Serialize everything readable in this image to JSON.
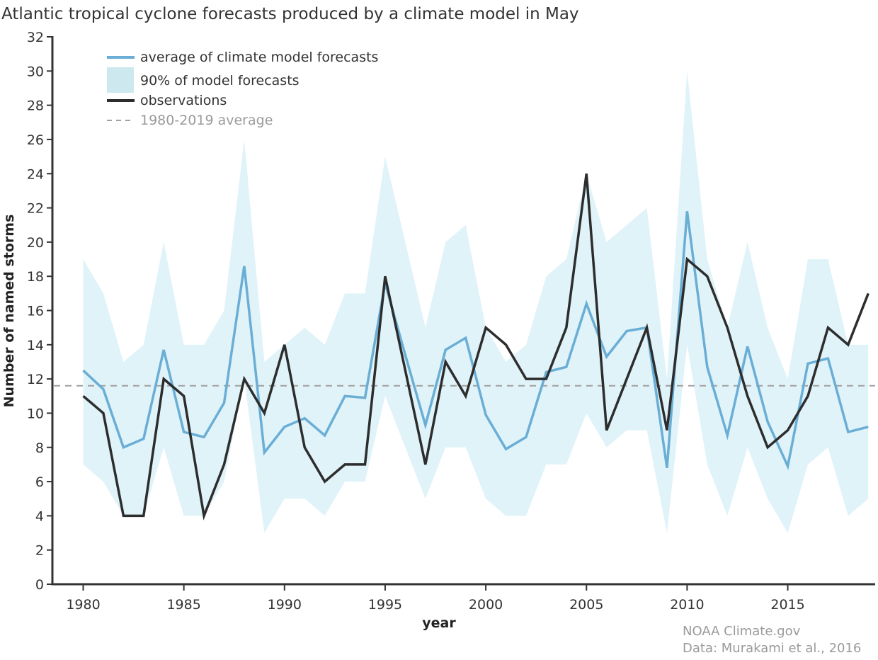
{
  "chart_data": {
    "type": "line",
    "title": "Atlantic tropical cyclone forecasts produced by a climate model in May",
    "xlabel": "year",
    "ylabel": "Number of named storms",
    "xlim": [
      1978.5,
      2019.3
    ],
    "ylim": [
      0,
      32
    ],
    "xticks": [
      1980,
      1985,
      1990,
      1995,
      2000,
      2005,
      2010,
      2015
    ],
    "yticks": [
      0,
      2,
      4,
      6,
      8,
      10,
      12,
      14,
      16,
      18,
      20,
      22,
      24,
      26,
      28,
      30,
      32
    ],
    "grid": false,
    "legend_position": "top-left",
    "x": [
      1980,
      1981,
      1982,
      1983,
      1984,
      1985,
      1986,
      1987,
      1988,
      1989,
      1990,
      1991,
      1992,
      1993,
      1994,
      1995,
      1996,
      1997,
      1998,
      1999,
      2000,
      2001,
      2002,
      2003,
      2004,
      2005,
      2006,
      2007,
      2008,
      2009,
      2010,
      2011,
      2012,
      2013,
      2014,
      2015,
      2016,
      2017,
      2018,
      2019
    ],
    "series": [
      {
        "name": "90% of model forecasts",
        "kind": "band",
        "color": "#e0f3f9",
        "legend_color": "#cde8ee",
        "upper": [
          19,
          17,
          13,
          14,
          20,
          14,
          14,
          16,
          26,
          13,
          14,
          15,
          14,
          17,
          17,
          25,
          20,
          15,
          20,
          21,
          15,
          13,
          14,
          18,
          19,
          24,
          20,
          21,
          22,
          12,
          30,
          19,
          15,
          20,
          15,
          12,
          19,
          19,
          14,
          14
        ],
        "lower": [
          7,
          6,
          4,
          4,
          8,
          4,
          4,
          6,
          12,
          3,
          5,
          5,
          4,
          6,
          6,
          11,
          8,
          5,
          8,
          8,
          5,
          4,
          4,
          7,
          7,
          10,
          8,
          9,
          9,
          3,
          14,
          7,
          4,
          8,
          5,
          3,
          7,
          8,
          4,
          5
        ]
      },
      {
        "name": "average of climate model forecasts",
        "kind": "line",
        "color": "#6aaed6",
        "values": [
          12.5,
          11.4,
          8.0,
          8.5,
          13.7,
          8.9,
          8.6,
          10.6,
          18.6,
          7.7,
          9.2,
          9.7,
          8.7,
          11.0,
          10.9,
          17.6,
          13.4,
          9.3,
          13.7,
          14.4,
          9.9,
          7.9,
          8.6,
          12.4,
          12.7,
          16.4,
          13.3,
          14.8,
          15.0,
          6.8,
          21.8,
          12.7,
          8.7,
          13.9,
          9.5,
          6.9,
          12.9,
          13.2,
          8.9,
          9.2
        ]
      },
      {
        "name": "observations",
        "kind": "line",
        "color": "#2d2d2d",
        "values": [
          11,
          10,
          4,
          4,
          12,
          11,
          4,
          7,
          12,
          10,
          14,
          8,
          6,
          7,
          7,
          18,
          12.5,
          7,
          13,
          11,
          15,
          14,
          12,
          12,
          15,
          24,
          9,
          12,
          15,
          9,
          19,
          18,
          15,
          11,
          8,
          9,
          11,
          15,
          14,
          17
        ]
      },
      {
        "name": "1980-2019 average",
        "kind": "hline",
        "color": "#a0a0a0",
        "value": 11.6
      }
    ],
    "legend": [
      {
        "label": "average of climate model forecasts",
        "symbol": "line",
        "color": "#6aaed6"
      },
      {
        "label": "90% of model forecasts",
        "symbol": "box",
        "color": "#cde8ee"
      },
      {
        "label": "observations",
        "symbol": "line",
        "color": "#2d2d2d"
      },
      {
        "label": "1980-2019 average",
        "symbol": "dashed",
        "color": "#a0a0a0",
        "muted": true
      }
    ],
    "credits": [
      "NOAA Climate.gov",
      "Data: Murakami et al., 2016"
    ]
  }
}
